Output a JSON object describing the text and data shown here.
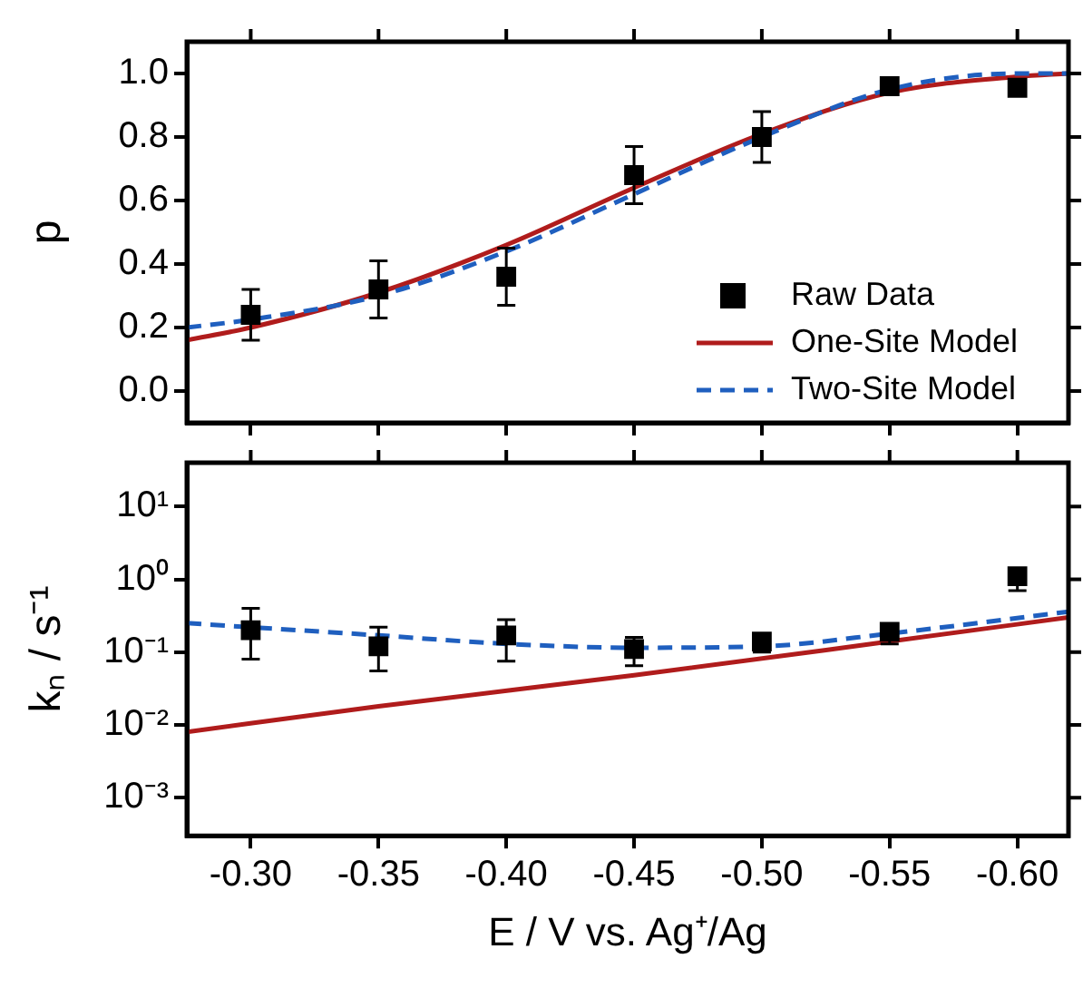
{
  "chart_data": [
    {
      "type": "scatter",
      "ylabel": "p",
      "xlim": [
        -0.275,
        -0.62
      ],
      "xticks": [
        {
          "value": -0.3,
          "label": null
        },
        {
          "value": -0.35,
          "label": null
        },
        {
          "value": -0.4,
          "label": null
        },
        {
          "value": -0.45,
          "label": null
        },
        {
          "value": -0.5,
          "label": null
        },
        {
          "value": -0.55,
          "label": null
        },
        {
          "value": -0.6,
          "label": null
        }
      ],
      "ylim": [
        -0.1,
        1.1
      ],
      "yticks": [
        {
          "value": 0,
          "label": "0.0"
        },
        {
          "value": 0.2,
          "label": "0.2"
        },
        {
          "value": 0.4,
          "label": "0.4"
        },
        {
          "value": 0.6,
          "label": "0.6"
        },
        {
          "value": 0.8,
          "label": "0.8"
        },
        {
          "value": 1,
          "label": "1.0"
        }
      ],
      "tick_labels": "y",
      "legend": "bottom right",
      "grid": false,
      "series": [
        {
          "type": "scatter",
          "name": "Raw Data",
          "color": "#000000",
          "marker": "square",
          "x": [
            -0.3,
            -0.35,
            -0.4,
            -0.45,
            -0.5,
            -0.55,
            -0.6
          ],
          "values": [
            0.24,
            0.32,
            0.36,
            0.68,
            0.8,
            0.96,
            0.955
          ],
          "errors": [
            0.08,
            0.09,
            0.09,
            0.09,
            0.08,
            null,
            null
          ]
        },
        {
          "type": "line",
          "name": "One-Site Model",
          "color": "#b01c1c",
          "line_style": "solid",
          "x": [
            -0.275,
            -0.3,
            -0.35,
            -0.4,
            -0.45,
            -0.5,
            -0.55,
            -0.6,
            -0.62
          ],
          "values": [
            0.16,
            0.2,
            0.31,
            0.46,
            0.64,
            0.81,
            0.94,
            0.99,
            1.0
          ]
        },
        {
          "type": "line",
          "name": "Two-Site Model",
          "color": "#1f5fbf",
          "line_style": "dashed",
          "x": [
            -0.275,
            -0.3,
            -0.35,
            -0.4,
            -0.45,
            -0.5,
            -0.55,
            -0.6,
            -0.62
          ],
          "values": [
            0.2,
            0.225,
            0.3,
            0.44,
            0.62,
            0.8,
            0.95,
            1.0,
            1.0
          ]
        }
      ]
    },
    {
      "type": "scatter",
      "xlabel": "E / V vs. Ag⁺/Ag",
      "ylabel": "kₙ / s⁻¹",
      "log": "y",
      "xlim": [
        -0.275,
        -0.62
      ],
      "xticks": [
        {
          "value": -0.3,
          "label": "-0.30"
        },
        {
          "value": -0.35,
          "label": "-0.35"
        },
        {
          "value": -0.4,
          "label": "-0.40"
        },
        {
          "value": -0.45,
          "label": "-0.45"
        },
        {
          "value": -0.5,
          "label": "-0.50"
        },
        {
          "value": -0.55,
          "label": "-0.55"
        },
        {
          "value": -0.6,
          "label": "-0.60"
        }
      ],
      "ylim": [
        0.0003,
        40
      ],
      "yticks": [
        {
          "value": 0.001,
          "label": "10⁻³"
        },
        {
          "value": 0.01,
          "label": "10⁻²"
        },
        {
          "value": 0.1,
          "label": "10⁻¹"
        },
        {
          "value": 1,
          "label": "10⁰"
        },
        {
          "value": 10,
          "label": "10¹"
        }
      ],
      "grid": false,
      "series": [
        {
          "type": "scatter",
          "color": "#000000",
          "marker": "square",
          "x": [
            -0.3,
            -0.35,
            -0.4,
            -0.45,
            -0.5,
            -0.55,
            -0.6
          ],
          "values": [
            0.2,
            0.12,
            0.17,
            0.11,
            0.14,
            0.19,
            1.1
          ],
          "errors": [
            [
              0.08,
              0.4
            ],
            [
              0.055,
              0.22
            ],
            [
              0.075,
              0.28
            ],
            [
              0.065,
              0.16
            ],
            [
              0.1,
              0.17
            ],
            [
              0.13,
              0.24
            ],
            [
              0.7,
              1.3
            ]
          ]
        },
        {
          "type": "line",
          "color": "#b01c1c",
          "line_style": "solid",
          "x": [
            -0.275,
            -0.35,
            -0.45,
            -0.55,
            -0.62
          ],
          "values": [
            0.008,
            0.018,
            0.048,
            0.14,
            0.3
          ]
        },
        {
          "type": "line",
          "color": "#1f5fbf",
          "line_style": "dashed",
          "x": [
            -0.275,
            -0.35,
            -0.4,
            -0.45,
            -0.5,
            -0.55,
            -0.62
          ],
          "values": [
            0.25,
            0.17,
            0.13,
            0.115,
            0.12,
            0.18,
            0.36
          ]
        }
      ]
    }
  ]
}
